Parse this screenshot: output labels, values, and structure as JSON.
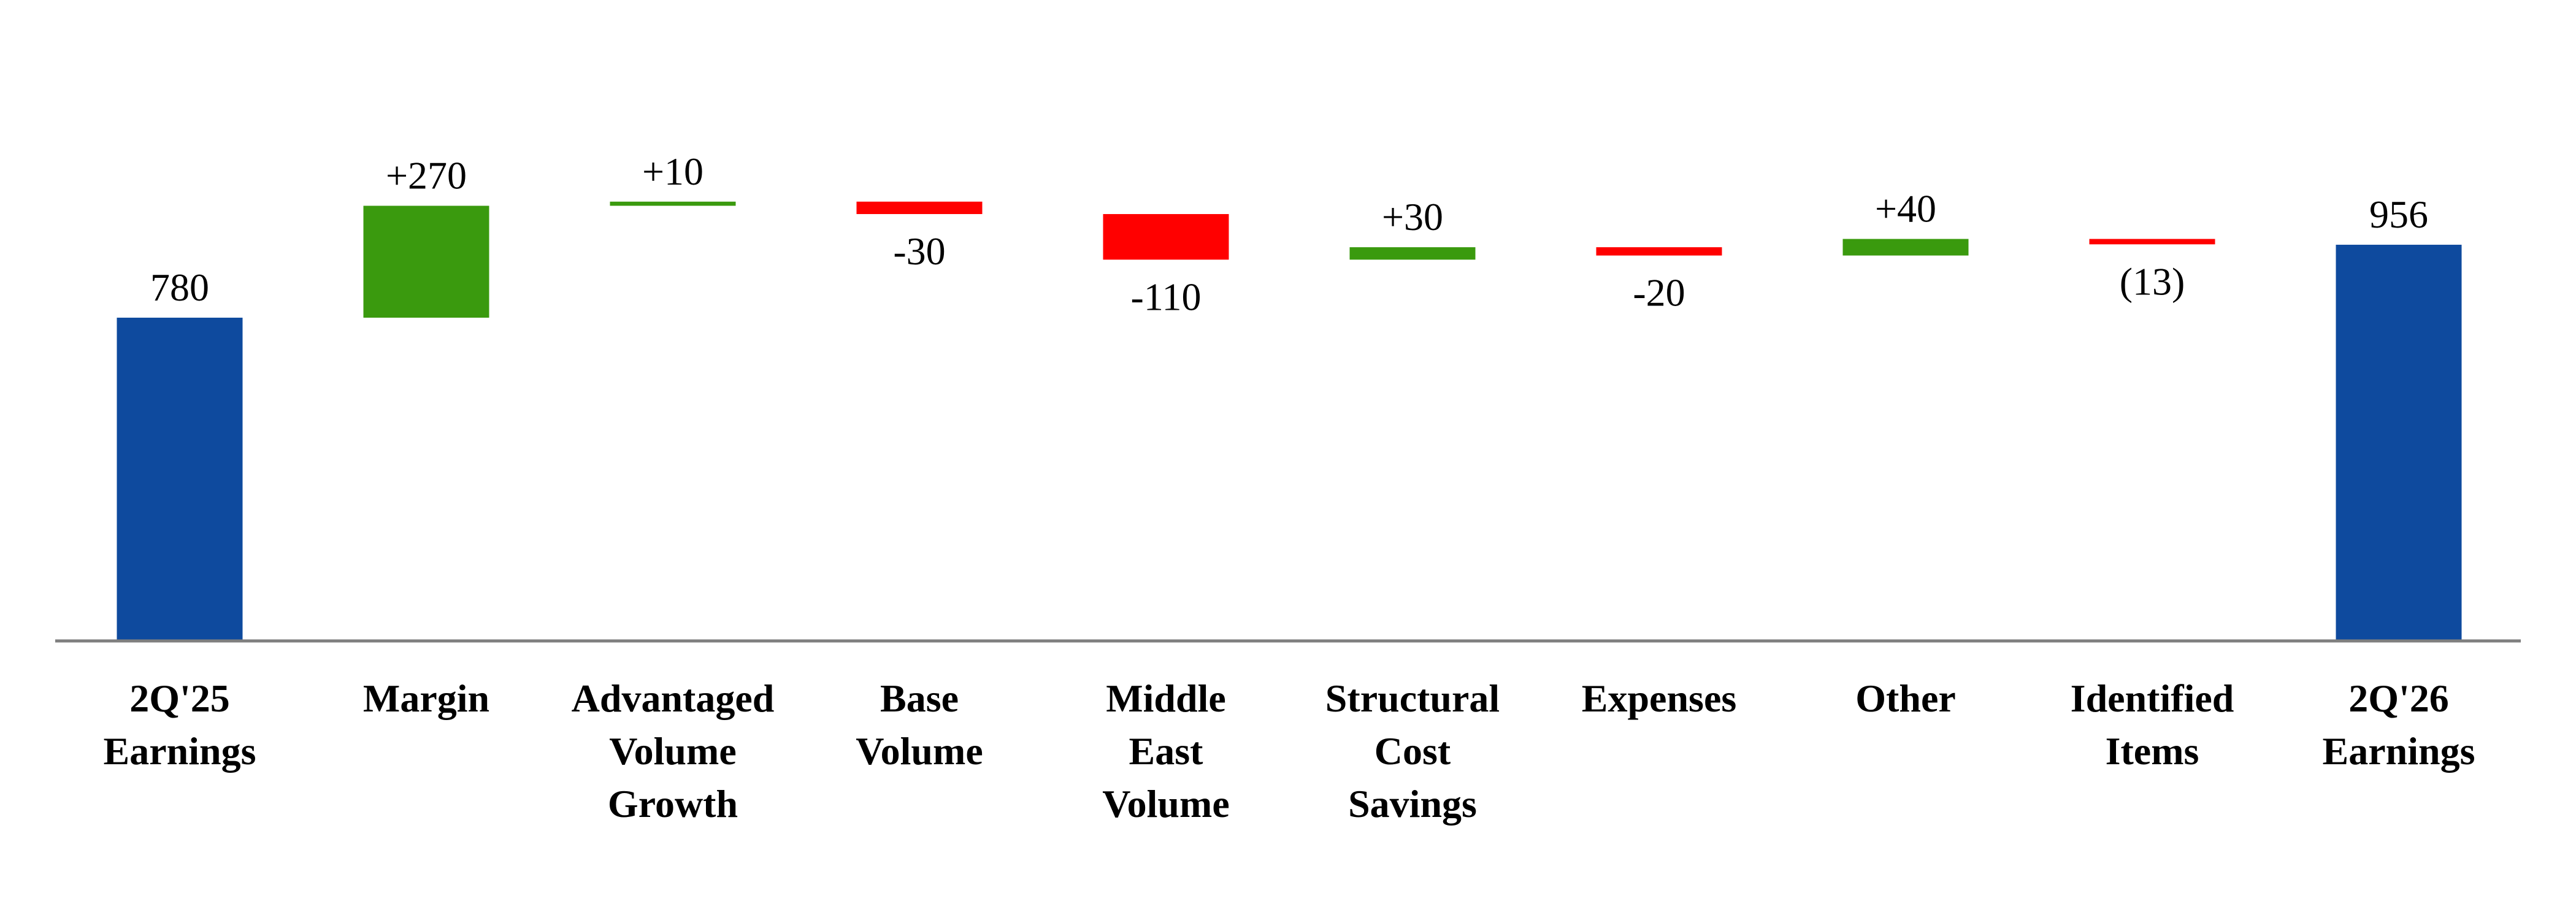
{
  "chart_data": {
    "type": "waterfall",
    "title": "",
    "xlabel": "",
    "ylabel": "",
    "grid": false,
    "legend": "none",
    "ylim": [
      0,
      1050
    ],
    "categories": [
      [
        "2Q'25",
        "Earnings"
      ],
      [
        "Margin"
      ],
      [
        "Advantaged",
        "Volume",
        "Growth"
      ],
      [
        "Base",
        "Volume"
      ],
      [
        "Middle",
        "East",
        "Volume"
      ],
      [
        "Structural",
        "Cost",
        "Savings"
      ],
      [
        "Expenses"
      ],
      [
        "Other"
      ],
      [
        "Identified",
        "Items"
      ],
      [
        "2Q'26",
        "Earnings"
      ]
    ],
    "values": [
      780,
      270,
      10,
      -30,
      -110,
      30,
      -20,
      40,
      -13,
      956
    ],
    "kinds": [
      "total",
      "delta",
      "delta",
      "delta",
      "delta",
      "delta",
      "delta",
      "delta",
      "delta",
      "total"
    ],
    "labels": [
      "780",
      "+270",
      "+10",
      "-30",
      "-110",
      "+30",
      "-20",
      "+40",
      "(13)",
      "956"
    ],
    "colors": {
      "total": "#0e4a9e",
      "increase": "#3a9a0e",
      "decrease": "#ff0000",
      "axis": "#7f7f7f"
    }
  }
}
